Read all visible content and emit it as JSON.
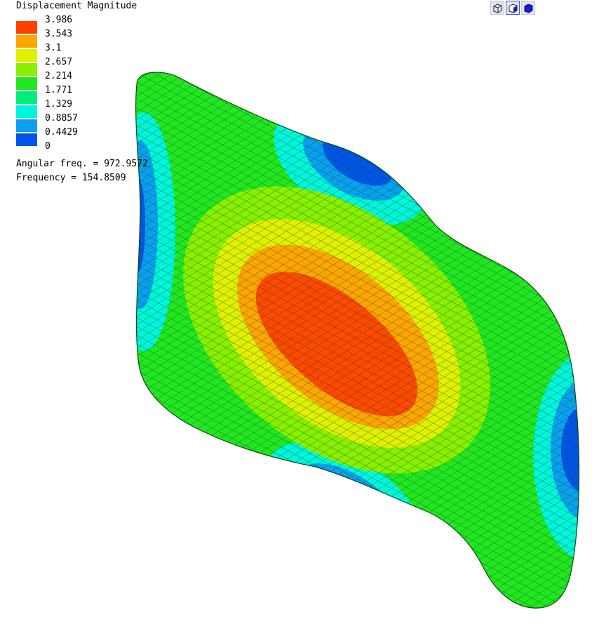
{
  "legend": {
    "title": "Displacement Magnitude",
    "labels": [
      "3.986",
      "3.543",
      "3.1",
      "2.657",
      "2.214",
      "1.771",
      "1.329",
      "0.8857",
      "0.4429",
      "0"
    ]
  },
  "info": [
    "Angular freq. = 972.9572",
    "Frequency = 154.8509"
  ]
}
